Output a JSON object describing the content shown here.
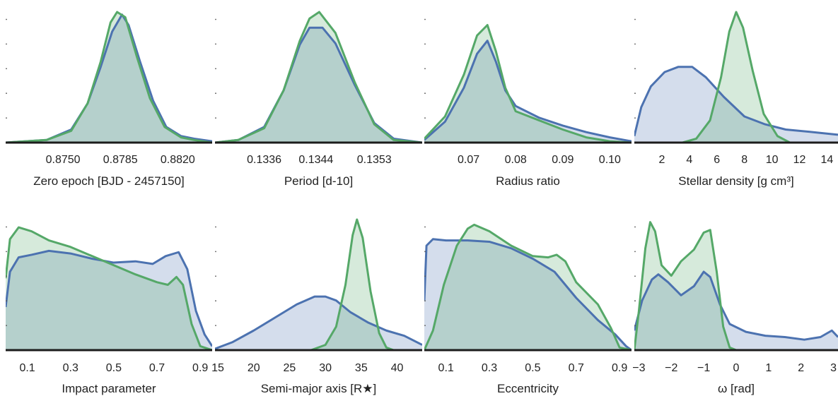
{
  "colors": {
    "blue": "#4c72b0",
    "green": "#55a868",
    "blue_fill": "#d2d9ea",
    "green_fill": "#d7ebd7",
    "overlap_fill": "#b2cdc6"
  },
  "chart_data": [
    {
      "type": "area",
      "xlabel": "Zero epoch [BJD - 2457150]",
      "xlim": [
        0.8715,
        0.8841
      ],
      "xticks": [
        0.875,
        0.8785,
        0.882
      ],
      "xticklabels": [
        "0.8750",
        "0.8785",
        "0.8820"
      ],
      "series": [
        {
          "color": "blue",
          "points": [
            [
              0.8715,
              0.0
            ],
            [
              0.874,
              0.02
            ],
            [
              0.8755,
              0.1
            ],
            [
              0.8765,
              0.3
            ],
            [
              0.8773,
              0.58
            ],
            [
              0.878,
              0.85
            ],
            [
              0.8786,
              0.98
            ],
            [
              0.879,
              0.9
            ],
            [
              0.8797,
              0.62
            ],
            [
              0.8805,
              0.32
            ],
            [
              0.8813,
              0.12
            ],
            [
              0.8822,
              0.05
            ],
            [
              0.883,
              0.03
            ],
            [
              0.8841,
              0.01
            ]
          ]
        },
        {
          "color": "green",
          "points": [
            [
              0.8715,
              0.0
            ],
            [
              0.874,
              0.02
            ],
            [
              0.8755,
              0.09
            ],
            [
              0.8765,
              0.3
            ],
            [
              0.8773,
              0.62
            ],
            [
              0.8779,
              0.92
            ],
            [
              0.8783,
              1.0
            ],
            [
              0.8788,
              0.96
            ],
            [
              0.8795,
              0.66
            ],
            [
              0.8803,
              0.34
            ],
            [
              0.8812,
              0.12
            ],
            [
              0.8822,
              0.04
            ],
            [
              0.883,
              0.02
            ],
            [
              0.8841,
              0.0
            ]
          ]
        }
      ]
    },
    {
      "type": "area",
      "xlabel": "Period [d-10]",
      "xlim": [
        0.13284,
        0.13604
      ],
      "xticks": [
        0.1336,
        0.1344,
        0.1353
      ],
      "xticklabels": [
        "0.1336",
        "0.1344",
        "0.1353"
      ],
      "series": [
        {
          "color": "blue",
          "points": [
            [
              0.13284,
              0.0
            ],
            [
              0.1332,
              0.02
            ],
            [
              0.1336,
              0.12
            ],
            [
              0.1339,
              0.4
            ],
            [
              0.13415,
              0.75
            ],
            [
              0.1343,
              0.88
            ],
            [
              0.1345,
              0.88
            ],
            [
              0.1347,
              0.76
            ],
            [
              0.135,
              0.44
            ],
            [
              0.1353,
              0.15
            ],
            [
              0.1356,
              0.03
            ],
            [
              0.13604,
              0.0
            ]
          ]
        },
        {
          "color": "green",
          "points": [
            [
              0.13284,
              0.0
            ],
            [
              0.1332,
              0.02
            ],
            [
              0.1336,
              0.11
            ],
            [
              0.1339,
              0.4
            ],
            [
              0.13415,
              0.78
            ],
            [
              0.1343,
              0.95
            ],
            [
              0.13445,
              1.0
            ],
            [
              0.1347,
              0.84
            ],
            [
              0.135,
              0.46
            ],
            [
              0.1353,
              0.14
            ],
            [
              0.1356,
              0.02
            ],
            [
              0.13604,
              0.0
            ]
          ]
        }
      ]
    },
    {
      "type": "area",
      "xlabel": "Radius ratio",
      "xlim": [
        0.0606,
        0.1046
      ],
      "xticks": [
        0.07,
        0.08,
        0.09,
        0.1
      ],
      "xticklabels": [
        "0.07",
        "0.08",
        "0.09",
        "0.10"
      ],
      "series": [
        {
          "color": "blue",
          "points": [
            [
              0.0606,
              0.02
            ],
            [
              0.065,
              0.16
            ],
            [
              0.069,
              0.42
            ],
            [
              0.0718,
              0.68
            ],
            [
              0.074,
              0.78
            ],
            [
              0.0758,
              0.62
            ],
            [
              0.0778,
              0.4
            ],
            [
              0.08,
              0.28
            ],
            [
              0.085,
              0.19
            ],
            [
              0.09,
              0.13
            ],
            [
              0.095,
              0.08
            ],
            [
              0.1,
              0.04
            ],
            [
              0.1046,
              0.01
            ]
          ]
        },
        {
          "color": "green",
          "points": [
            [
              0.0606,
              0.03
            ],
            [
              0.065,
              0.2
            ],
            [
              0.069,
              0.52
            ],
            [
              0.0718,
              0.82
            ],
            [
              0.074,
              0.9
            ],
            [
              0.0758,
              0.7
            ],
            [
              0.0778,
              0.42
            ],
            [
              0.08,
              0.24
            ],
            [
              0.085,
              0.17
            ],
            [
              0.09,
              0.1
            ],
            [
              0.095,
              0.04
            ],
            [
              0.1,
              0.01
            ],
            [
              0.1046,
              0.0
            ]
          ]
        }
      ]
    },
    {
      "type": "area",
      "xlabel": "Stellar density [g cm³]",
      "xlim": [
        0.0,
        14.8
      ],
      "xticks": [
        2,
        4,
        6,
        8,
        10,
        12,
        14
      ],
      "xticklabels": [
        "2",
        "4",
        "6",
        "8",
        "10",
        "12",
        "14"
      ],
      "series": [
        {
          "color": "blue",
          "points": [
            [
              0.0,
              0.05
            ],
            [
              0.5,
              0.27
            ],
            [
              1.2,
              0.43
            ],
            [
              2.2,
              0.54
            ],
            [
              3.2,
              0.58
            ],
            [
              4.2,
              0.58
            ],
            [
              5.2,
              0.5
            ],
            [
              6.5,
              0.35
            ],
            [
              8.0,
              0.2
            ],
            [
              9.5,
              0.14
            ],
            [
              11.0,
              0.1
            ],
            [
              13.0,
              0.08
            ],
            [
              14.8,
              0.06
            ]
          ]
        },
        {
          "color": "green",
          "points": [
            [
              0.0,
              0.0
            ],
            [
              3.5,
              0.0
            ],
            [
              4.5,
              0.03
            ],
            [
              5.5,
              0.17
            ],
            [
              6.3,
              0.5
            ],
            [
              6.9,
              0.85
            ],
            [
              7.4,
              1.0
            ],
            [
              7.9,
              0.88
            ],
            [
              8.6,
              0.55
            ],
            [
              9.4,
              0.22
            ],
            [
              10.4,
              0.05
            ],
            [
              11.3,
              0.0
            ],
            [
              14.8,
              0.0
            ]
          ]
        }
      ]
    },
    {
      "type": "area",
      "xlabel": "Impact parameter",
      "xlim": [
        0.0,
        0.955
      ],
      "xticks": [
        0.1,
        0.3,
        0.5,
        0.7,
        0.9
      ],
      "xticklabels": [
        "0.1",
        "0.3",
        "0.5",
        "0.7",
        "0.9"
      ],
      "series": [
        {
          "color": "blue",
          "points": [
            [
              0.0,
              0.33
            ],
            [
              0.02,
              0.6
            ],
            [
              0.06,
              0.71
            ],
            [
              0.12,
              0.73
            ],
            [
              0.2,
              0.76
            ],
            [
              0.3,
              0.74
            ],
            [
              0.4,
              0.7
            ],
            [
              0.5,
              0.67
            ],
            [
              0.6,
              0.68
            ],
            [
              0.68,
              0.66
            ],
            [
              0.74,
              0.72
            ],
            [
              0.8,
              0.75
            ],
            [
              0.84,
              0.62
            ],
            [
              0.88,
              0.3
            ],
            [
              0.92,
              0.12
            ],
            [
              0.955,
              0.03
            ]
          ]
        },
        {
          "color": "green",
          "points": [
            [
              0.0,
              0.55
            ],
            [
              0.02,
              0.85
            ],
            [
              0.06,
              0.94
            ],
            [
              0.12,
              0.91
            ],
            [
              0.2,
              0.84
            ],
            [
              0.3,
              0.79
            ],
            [
              0.4,
              0.72
            ],
            [
              0.5,
              0.65
            ],
            [
              0.6,
              0.58
            ],
            [
              0.7,
              0.52
            ],
            [
              0.75,
              0.5
            ],
            [
              0.79,
              0.56
            ],
            [
              0.82,
              0.5
            ],
            [
              0.86,
              0.2
            ],
            [
              0.9,
              0.03
            ],
            [
              0.955,
              0.0
            ]
          ]
        }
      ]
    },
    {
      "type": "area",
      "xlabel": "Semi-major axis [R★]",
      "xlim": [
        14.6,
        43.5
      ],
      "xticks": [
        15,
        20,
        25,
        30,
        35,
        40
      ],
      "xticklabels": [
        "15",
        "20",
        "25",
        "30",
        "35",
        "40"
      ],
      "series": [
        {
          "color": "blue",
          "points": [
            [
              14.6,
              0.01
            ],
            [
              17.0,
              0.06
            ],
            [
              20.0,
              0.15
            ],
            [
              23.0,
              0.25
            ],
            [
              26.0,
              0.35
            ],
            [
              28.5,
              0.41
            ],
            [
              30.0,
              0.41
            ],
            [
              31.5,
              0.38
            ],
            [
              33.5,
              0.29
            ],
            [
              36.0,
              0.21
            ],
            [
              38.5,
              0.15
            ],
            [
              41.0,
              0.11
            ],
            [
              43.5,
              0.04
            ]
          ]
        },
        {
          "color": "green",
          "points": [
            [
              14.6,
              0.0
            ],
            [
              28.0,
              0.0
            ],
            [
              30.0,
              0.04
            ],
            [
              31.5,
              0.18
            ],
            [
              32.8,
              0.5
            ],
            [
              33.8,
              0.88
            ],
            [
              34.4,
              1.0
            ],
            [
              35.2,
              0.86
            ],
            [
              36.3,
              0.45
            ],
            [
              37.5,
              0.13
            ],
            [
              38.5,
              0.02
            ],
            [
              39.5,
              0.0
            ],
            [
              43.5,
              0.0
            ]
          ]
        }
      ]
    },
    {
      "type": "area",
      "xlabel": "Eccentricity",
      "xlim": [
        0.0,
        0.955
      ],
      "xticks": [
        0.1,
        0.3,
        0.5,
        0.7,
        0.9
      ],
      "xticklabels": [
        "0.1",
        "0.3",
        "0.5",
        "0.7",
        "0.9"
      ],
      "series": [
        {
          "color": "blue",
          "points": [
            [
              0.0,
              0.38
            ],
            [
              0.01,
              0.8
            ],
            [
              0.04,
              0.85
            ],
            [
              0.1,
              0.84
            ],
            [
              0.2,
              0.84
            ],
            [
              0.3,
              0.83
            ],
            [
              0.4,
              0.78
            ],
            [
              0.5,
              0.7
            ],
            [
              0.6,
              0.6
            ],
            [
              0.7,
              0.4
            ],
            [
              0.8,
              0.23
            ],
            [
              0.88,
              0.12
            ],
            [
              0.93,
              0.03
            ],
            [
              0.955,
              0.0
            ]
          ]
        },
        {
          "color": "green",
          "points": [
            [
              0.0,
              0.0
            ],
            [
              0.04,
              0.15
            ],
            [
              0.09,
              0.5
            ],
            [
              0.15,
              0.8
            ],
            [
              0.2,
              0.93
            ],
            [
              0.23,
              0.96
            ],
            [
              0.3,
              0.91
            ],
            [
              0.4,
              0.8
            ],
            [
              0.5,
              0.72
            ],
            [
              0.57,
              0.71
            ],
            [
              0.61,
              0.73
            ],
            [
              0.65,
              0.68
            ],
            [
              0.7,
              0.52
            ],
            [
              0.8,
              0.35
            ],
            [
              0.86,
              0.17
            ],
            [
              0.9,
              0.02
            ],
            [
              0.955,
              0.0
            ]
          ]
        }
      ]
    },
    {
      "type": "area",
      "xlabel": "ω [rad]",
      "xlim": [
        -3.14,
        3.14
      ],
      "xticks": [
        -3,
        -2,
        -1,
        0,
        1,
        2,
        3
      ],
      "xticklabels": [
        "−3",
        "−2",
        "−1",
        "0",
        "1",
        "2",
        "3"
      ],
      "series": [
        {
          "color": "blue",
          "points": [
            [
              -3.14,
              0.15
            ],
            [
              -2.9,
              0.38
            ],
            [
              -2.6,
              0.54
            ],
            [
              -2.4,
              0.58
            ],
            [
              -2.1,
              0.52
            ],
            [
              -1.7,
              0.42
            ],
            [
              -1.3,
              0.49
            ],
            [
              -1.0,
              0.6
            ],
            [
              -0.8,
              0.56
            ],
            [
              -0.5,
              0.35
            ],
            [
              -0.2,
              0.2
            ],
            [
              0.3,
              0.14
            ],
            [
              0.9,
              0.11
            ],
            [
              1.5,
              0.1
            ],
            [
              2.1,
              0.08
            ],
            [
              2.6,
              0.1
            ],
            [
              2.95,
              0.15
            ],
            [
              3.14,
              0.1
            ]
          ]
        },
        {
          "color": "green",
          "points": [
            [
              -3.14,
              0.0
            ],
            [
              -3.0,
              0.3
            ],
            [
              -2.8,
              0.78
            ],
            [
              -2.65,
              0.98
            ],
            [
              -2.5,
              0.91
            ],
            [
              -2.3,
              0.65
            ],
            [
              -2.0,
              0.57
            ],
            [
              -1.7,
              0.68
            ],
            [
              -1.3,
              0.77
            ],
            [
              -1.0,
              0.9
            ],
            [
              -0.8,
              0.92
            ],
            [
              -0.6,
              0.6
            ],
            [
              -0.4,
              0.18
            ],
            [
              -0.2,
              0.02
            ],
            [
              0.0,
              0.0
            ],
            [
              3.14,
              0.0
            ]
          ]
        }
      ]
    }
  ]
}
